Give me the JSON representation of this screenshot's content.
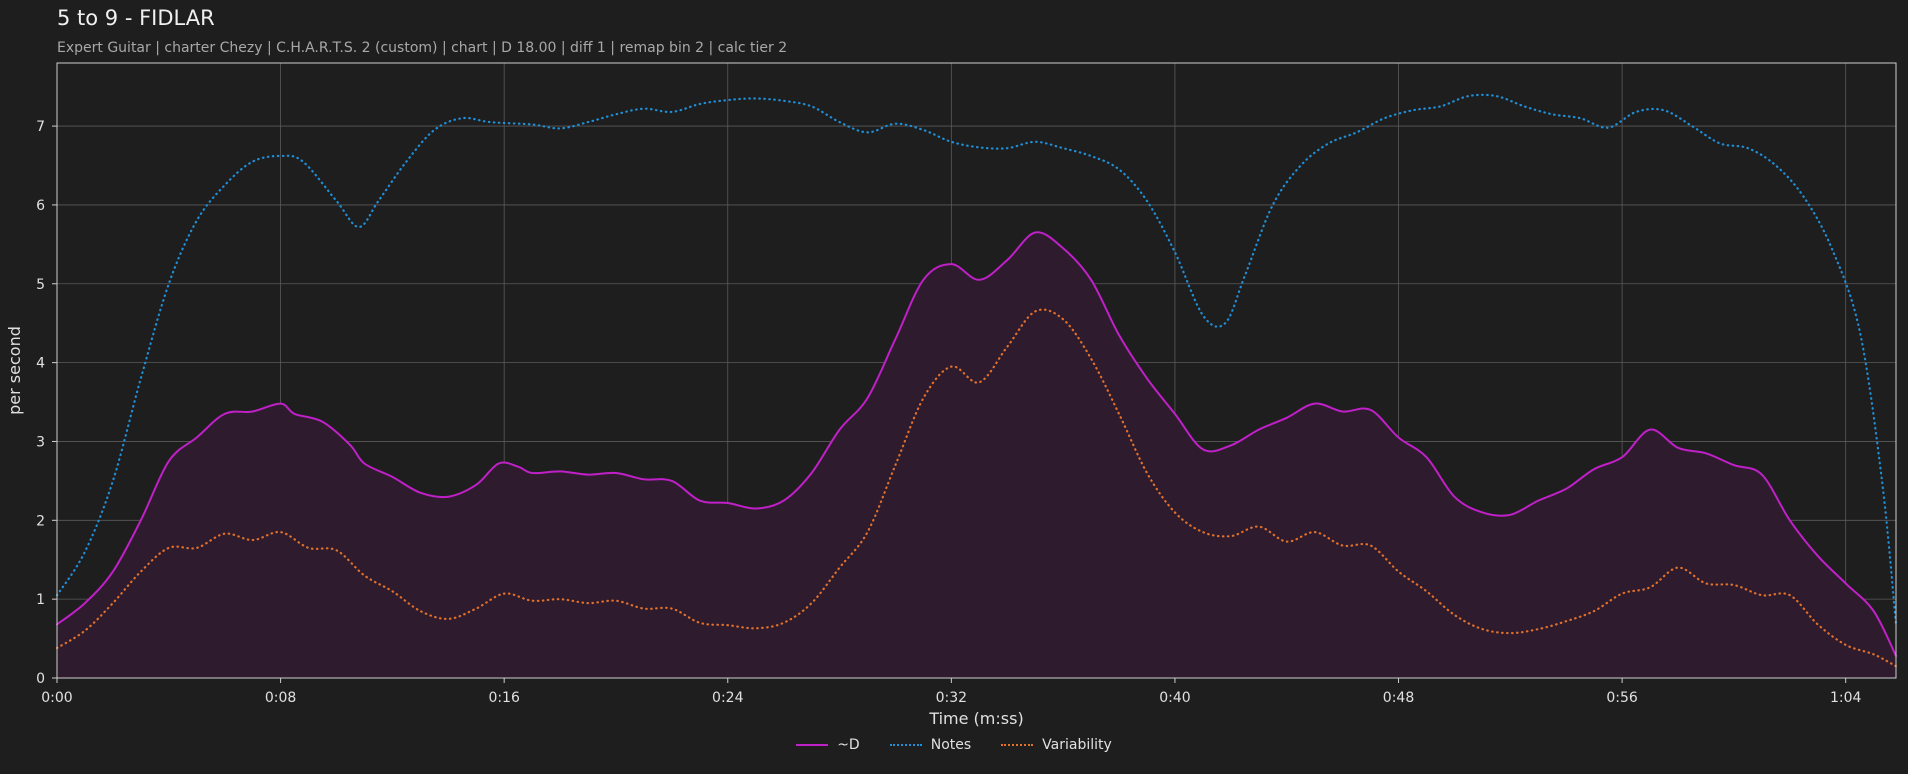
{
  "title": "5 to 9 - FIDLAR",
  "subtitle": "Expert Guitar  |  charter Chezy  |  C.H.A.R.T.S. 2 (custom)  |  chart  |  D 18.00  |  diff 1  |  remap bin 2  |  calc tier 2",
  "colors": {
    "background": "#1e1e1e",
    "grid": "#5a5a5a",
    "axis": "#cfcfcf",
    "d": "#c020c8",
    "d_fill": "#2e1b2e",
    "notes": "#1f8fd8",
    "variability": "#e0702a"
  },
  "chart_data": {
    "type": "line",
    "xlabel": "Time (m:ss)",
    "ylabel": "per second",
    "xlim": [
      0,
      65.8
    ],
    "ylim": [
      0,
      7.8
    ],
    "xticks": [
      0,
      8,
      16,
      24,
      32,
      40,
      48,
      56,
      64
    ],
    "xtick_labels": [
      "0:00",
      "0:08",
      "0:16",
      "0:24",
      "0:32",
      "0:40",
      "0:48",
      "0:56",
      "1:04"
    ],
    "yticks": [
      0,
      1,
      2,
      3,
      4,
      5,
      6,
      7
    ],
    "ytick_labels": [
      "0",
      "1",
      "2",
      "3",
      "4",
      "5",
      "6",
      "7"
    ],
    "grid": true,
    "legend_position": "bottom-center",
    "series": [
      {
        "name": "~D",
        "style": "solid",
        "fill": true,
        "color": "#c020c8",
        "points": [
          [
            0,
            0.68
          ],
          [
            1,
            0.95
          ],
          [
            2,
            1.35
          ],
          [
            3,
            2.0
          ],
          [
            4,
            2.75
          ],
          [
            5,
            3.05
          ],
          [
            6,
            3.35
          ],
          [
            7,
            3.38
          ],
          [
            8,
            3.48
          ],
          [
            8.5,
            3.35
          ],
          [
            9.5,
            3.25
          ],
          [
            10.5,
            2.95
          ],
          [
            11,
            2.72
          ],
          [
            12,
            2.55
          ],
          [
            13,
            2.35
          ],
          [
            14,
            2.3
          ],
          [
            15,
            2.45
          ],
          [
            15.8,
            2.72
          ],
          [
            16.5,
            2.68
          ],
          [
            17,
            2.6
          ],
          [
            18,
            2.62
          ],
          [
            19,
            2.58
          ],
          [
            20,
            2.6
          ],
          [
            21,
            2.52
          ],
          [
            22,
            2.5
          ],
          [
            23,
            2.25
          ],
          [
            24,
            2.22
          ],
          [
            25,
            2.15
          ],
          [
            26,
            2.25
          ],
          [
            27,
            2.6
          ],
          [
            28,
            3.15
          ],
          [
            29,
            3.55
          ],
          [
            30,
            4.3
          ],
          [
            31,
            5.05
          ],
          [
            32,
            5.25
          ],
          [
            33,
            5.05
          ],
          [
            34,
            5.3
          ],
          [
            35,
            5.65
          ],
          [
            36,
            5.45
          ],
          [
            37,
            5.05
          ],
          [
            38,
            4.35
          ],
          [
            39,
            3.8
          ],
          [
            40,
            3.35
          ],
          [
            41,
            2.9
          ],
          [
            42,
            2.95
          ],
          [
            43,
            3.15
          ],
          [
            44,
            3.3
          ],
          [
            45,
            3.48
          ],
          [
            46,
            3.38
          ],
          [
            47,
            3.4
          ],
          [
            48,
            3.05
          ],
          [
            49,
            2.8
          ],
          [
            50,
            2.3
          ],
          [
            51,
            2.1
          ],
          [
            52,
            2.07
          ],
          [
            53,
            2.25
          ],
          [
            54,
            2.4
          ],
          [
            55,
            2.65
          ],
          [
            56,
            2.8
          ],
          [
            57,
            3.15
          ],
          [
            58,
            2.92
          ],
          [
            59,
            2.85
          ],
          [
            60,
            2.7
          ],
          [
            61,
            2.58
          ],
          [
            62,
            2.0
          ],
          [
            63,
            1.55
          ],
          [
            64,
            1.2
          ],
          [
            65,
            0.85
          ],
          [
            65.8,
            0.28
          ]
        ]
      },
      {
        "name": "Notes",
        "style": "dotted",
        "fill": false,
        "color": "#1f8fd8",
        "points": [
          [
            0,
            1.05
          ],
          [
            1,
            1.6
          ],
          [
            2,
            2.5
          ],
          [
            3,
            3.8
          ],
          [
            4,
            5.0
          ],
          [
            5,
            5.8
          ],
          [
            6,
            6.25
          ],
          [
            7,
            6.55
          ],
          [
            8,
            6.62
          ],
          [
            8.8,
            6.55
          ],
          [
            10,
            6.05
          ],
          [
            10.8,
            5.72
          ],
          [
            11.5,
            6.05
          ],
          [
            12.5,
            6.55
          ],
          [
            13.5,
            6.95
          ],
          [
            14.5,
            7.1
          ],
          [
            15.5,
            7.05
          ],
          [
            17,
            7.02
          ],
          [
            18,
            6.97
          ],
          [
            19,
            7.05
          ],
          [
            20,
            7.15
          ],
          [
            21,
            7.22
          ],
          [
            22,
            7.18
          ],
          [
            23,
            7.28
          ],
          [
            24,
            7.33
          ],
          [
            25,
            7.35
          ],
          [
            26,
            7.32
          ],
          [
            27,
            7.25
          ],
          [
            28,
            7.05
          ],
          [
            29,
            6.92
          ],
          [
            30,
            7.03
          ],
          [
            31,
            6.95
          ],
          [
            32,
            6.8
          ],
          [
            33,
            6.73
          ],
          [
            34,
            6.72
          ],
          [
            35,
            6.8
          ],
          [
            36,
            6.72
          ],
          [
            37,
            6.62
          ],
          [
            38,
            6.45
          ],
          [
            39,
            6.05
          ],
          [
            40,
            5.4
          ],
          [
            41,
            4.6
          ],
          [
            41.8,
            4.5
          ],
          [
            42.5,
            5.1
          ],
          [
            43.5,
            6.0
          ],
          [
            44.5,
            6.5
          ],
          [
            45.5,
            6.78
          ],
          [
            46.5,
            6.92
          ],
          [
            47.5,
            7.1
          ],
          [
            48.5,
            7.2
          ],
          [
            49.5,
            7.25
          ],
          [
            50.5,
            7.38
          ],
          [
            51.5,
            7.38
          ],
          [
            52.5,
            7.25
          ],
          [
            53.5,
            7.15
          ],
          [
            54.5,
            7.1
          ],
          [
            55.5,
            6.98
          ],
          [
            56.5,
            7.18
          ],
          [
            57.5,
            7.2
          ],
          [
            58.5,
            7.0
          ],
          [
            59.5,
            6.78
          ],
          [
            60.5,
            6.72
          ],
          [
            61.5,
            6.5
          ],
          [
            62.5,
            6.1
          ],
          [
            63.5,
            5.45
          ],
          [
            64.5,
            4.4
          ],
          [
            65.3,
            2.5
          ],
          [
            65.8,
            0.68
          ]
        ]
      },
      {
        "name": "Variability",
        "style": "dotted",
        "fill": false,
        "color": "#e0702a",
        "points": [
          [
            0,
            0.38
          ],
          [
            1,
            0.6
          ],
          [
            2,
            0.95
          ],
          [
            3,
            1.35
          ],
          [
            4,
            1.65
          ],
          [
            5,
            1.65
          ],
          [
            6,
            1.83
          ],
          [
            7,
            1.75
          ],
          [
            8,
            1.85
          ],
          [
            9,
            1.65
          ],
          [
            10,
            1.62
          ],
          [
            11,
            1.3
          ],
          [
            12,
            1.1
          ],
          [
            13,
            0.85
          ],
          [
            14,
            0.75
          ],
          [
            15,
            0.88
          ],
          [
            16,
            1.07
          ],
          [
            17,
            0.98
          ],
          [
            18,
            1.0
          ],
          [
            19,
            0.95
          ],
          [
            20,
            0.98
          ],
          [
            21,
            0.88
          ],
          [
            22,
            0.88
          ],
          [
            23,
            0.7
          ],
          [
            24,
            0.67
          ],
          [
            25,
            0.63
          ],
          [
            26,
            0.7
          ],
          [
            27,
            0.95
          ],
          [
            28,
            1.4
          ],
          [
            29,
            1.85
          ],
          [
            30,
            2.7
          ],
          [
            31,
            3.55
          ],
          [
            32,
            3.95
          ],
          [
            33,
            3.75
          ],
          [
            34,
            4.2
          ],
          [
            35,
            4.65
          ],
          [
            36,
            4.55
          ],
          [
            37,
            4.05
          ],
          [
            38,
            3.35
          ],
          [
            39,
            2.6
          ],
          [
            40,
            2.1
          ],
          [
            41,
            1.85
          ],
          [
            42,
            1.8
          ],
          [
            43,
            1.92
          ],
          [
            44,
            1.73
          ],
          [
            45,
            1.85
          ],
          [
            46,
            1.68
          ],
          [
            47,
            1.68
          ],
          [
            48,
            1.35
          ],
          [
            49,
            1.1
          ],
          [
            50,
            0.8
          ],
          [
            51,
            0.62
          ],
          [
            52,
            0.57
          ],
          [
            53,
            0.62
          ],
          [
            54,
            0.72
          ],
          [
            55,
            0.85
          ],
          [
            56,
            1.07
          ],
          [
            57,
            1.15
          ],
          [
            58,
            1.4
          ],
          [
            59,
            1.2
          ],
          [
            60,
            1.18
          ],
          [
            61,
            1.05
          ],
          [
            62,
            1.05
          ],
          [
            63,
            0.68
          ],
          [
            64,
            0.42
          ],
          [
            65,
            0.3
          ],
          [
            65.8,
            0.15
          ]
        ]
      }
    ]
  }
}
